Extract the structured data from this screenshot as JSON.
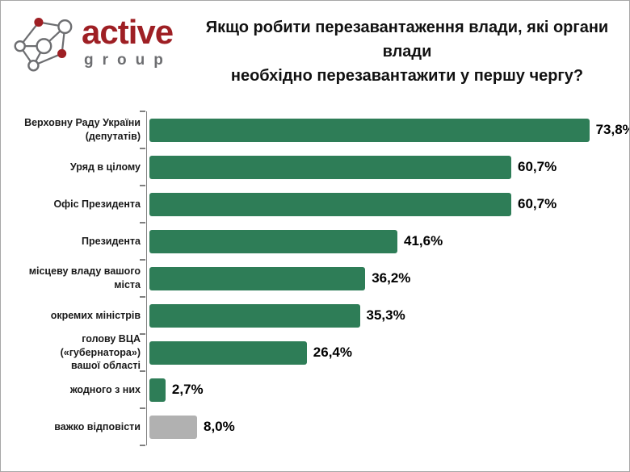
{
  "logo": {
    "brand": "active",
    "sub": "group",
    "icon": "network-nodes-logo",
    "brand_color": "#9E1F24",
    "sub_color": "#6D6E71"
  },
  "title": {
    "line1": "Якщо робити перезавантаження влади, які органи влади",
    "line2": "необхідно перезавантажити у першу чергу?"
  },
  "colors": {
    "bar_green": "#2E7D57",
    "bar_gray": "#B1B1B1",
    "axis_gray": "#7F7F7F",
    "accent_red": "#9E1F24"
  },
  "chart_data": {
    "type": "bar",
    "orientation": "horizontal",
    "title": "Якщо робити перезавантаження влади, які органи влади необхідно перезавантажити у першу чергу?",
    "categories": [
      "Верховну Раду України\n(депутатів)",
      "Уряд в цілому",
      "Офіс Президента",
      "Президента",
      "місцеву владу вашого міста",
      "окремих міністрів",
      "голову ВЦА («губернатора»)\nвашої області",
      "жодного з них",
      "важко відповісти"
    ],
    "values": [
      73.8,
      60.7,
      60.7,
      41.6,
      36.2,
      35.3,
      26.4,
      2.7,
      8.0
    ],
    "value_labels": [
      "73,8%",
      "60,7%",
      "60,7%",
      "41,6%",
      "36,2%",
      "35,3%",
      "26,4%",
      "2,7%",
      "8,0%"
    ],
    "bar_colors": [
      "#2E7D57",
      "#2E7D57",
      "#2E7D57",
      "#2E7D57",
      "#2E7D57",
      "#2E7D57",
      "#2E7D57",
      "#2E7D57",
      "#B1B1B1"
    ],
    "xlim": [
      0,
      80
    ],
    "grid": false,
    "legend": null,
    "data_label_position": "outside-end"
  }
}
